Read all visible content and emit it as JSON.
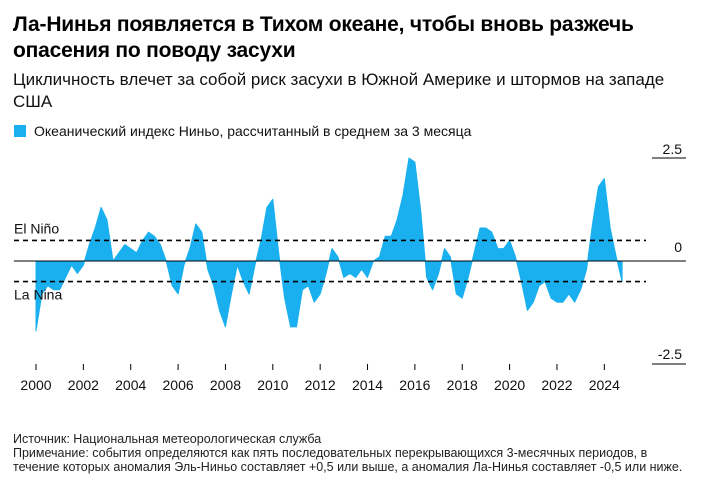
{
  "header": {
    "title": "Ла-Нинья появляется в Тихом океане, чтобы вновь разжечь опасения по поводу засухи",
    "subtitle": "Цикличность влечет за собой риск засухи в Южной Америке и штормов на западе США"
  },
  "legend": {
    "label": "Океанический индекс Ниньо, рассчитанный в среднем за 3 месяца",
    "color": "#1ab0f0"
  },
  "footer": {
    "source": "Источник: Национальная метеорологическая служба",
    "note": "Примечание: события определяются как пять последовательных перекрывающихся 3-месячных периодов, в течение которых аномалия Эль-Ниньо составляет +0,5 или выше, а аномалия Ла-Нинья составляет -0,5 или ниже."
  },
  "chart_data": {
    "type": "area",
    "series": [
      {
        "name": "Океанический индекс Ниньо, рассчитанный в среднем за 3 месяца",
        "color": "#1ab0f0",
        "x": [
          2000.0,
          2000.25,
          2000.5,
          2000.75,
          2001.0,
          2001.25,
          2001.5,
          2001.75,
          2002.0,
          2002.25,
          2002.5,
          2002.75,
          2003.0,
          2003.25,
          2003.5,
          2003.75,
          2004.0,
          2004.25,
          2004.5,
          2004.75,
          2005.0,
          2005.25,
          2005.5,
          2005.75,
          2006.0,
          2006.25,
          2006.5,
          2006.75,
          2007.0,
          2007.25,
          2007.5,
          2007.75,
          2008.0,
          2008.25,
          2008.5,
          2008.75,
          2009.0,
          2009.25,
          2009.5,
          2009.75,
          2010.0,
          2010.25,
          2010.5,
          2010.75,
          2011.0,
          2011.25,
          2011.5,
          2011.75,
          2012.0,
          2012.25,
          2012.5,
          2012.75,
          2013.0,
          2013.25,
          2013.5,
          2013.75,
          2014.0,
          2014.25,
          2014.5,
          2014.75,
          2015.0,
          2015.25,
          2015.5,
          2015.75,
          2016.0,
          2016.25,
          2016.5,
          2016.75,
          2017.0,
          2017.25,
          2017.5,
          2017.75,
          2018.0,
          2018.25,
          2018.5,
          2018.75,
          2019.0,
          2019.25,
          2019.5,
          2019.75,
          2020.0,
          2020.25,
          2020.5,
          2020.75,
          2021.0,
          2021.25,
          2021.5,
          2021.75,
          2022.0,
          2022.25,
          2022.5,
          2022.75,
          2023.0,
          2023.25,
          2023.5,
          2023.75,
          2024.0,
          2024.25,
          2024.5,
          2024.75
        ],
        "values": [
          -1.7,
          -0.8,
          -0.6,
          -0.7,
          -0.7,
          -0.4,
          -0.1,
          -0.3,
          -0.1,
          0.4,
          0.8,
          1.3,
          1.0,
          0.0,
          0.2,
          0.4,
          0.3,
          0.2,
          0.5,
          0.7,
          0.6,
          0.4,
          0.0,
          -0.6,
          -0.8,
          -0.1,
          0.3,
          0.9,
          0.7,
          -0.2,
          -0.6,
          -1.2,
          -1.6,
          -0.8,
          -0.1,
          -0.5,
          -0.8,
          -0.1,
          0.5,
          1.3,
          1.5,
          0.2,
          -0.9,
          -1.6,
          -1.6,
          -0.7,
          -0.6,
          -1.0,
          -0.8,
          -0.3,
          0.3,
          0.1,
          -0.4,
          -0.3,
          -0.4,
          -0.2,
          -0.4,
          0.0,
          0.1,
          0.6,
          0.6,
          1.0,
          1.6,
          2.5,
          2.4,
          1.2,
          -0.4,
          -0.7,
          -0.3,
          0.3,
          0.1,
          -0.8,
          -0.9,
          -0.4,
          0.2,
          0.8,
          0.8,
          0.7,
          0.3,
          0.3,
          0.5,
          0.1,
          -0.5,
          -1.2,
          -1.0,
          -0.6,
          -0.5,
          -0.9,
          -1.0,
          -1.0,
          -0.8,
          -1.0,
          -0.7,
          -0.2,
          0.9,
          1.8,
          2.0,
          0.8,
          0.1,
          -0.5
        ]
      }
    ],
    "xlim": [
      2000,
      2025
    ],
    "ylim": [
      -2.5,
      2.5
    ],
    "x_ticks": [
      "2000",
      "2002",
      "2004",
      "2006",
      "2008",
      "2010",
      "2012",
      "2014",
      "2016",
      "2018",
      "2020",
      "2022",
      "2024"
    ],
    "y_ticks": [
      "2.5",
      "0",
      "-2.5"
    ],
    "thresholds": [
      {
        "label": "El Niño",
        "value": 0.5
      },
      {
        "label": "La Nina",
        "value": -0.5
      }
    ],
    "grid": false,
    "legend_position": "top-left"
  }
}
